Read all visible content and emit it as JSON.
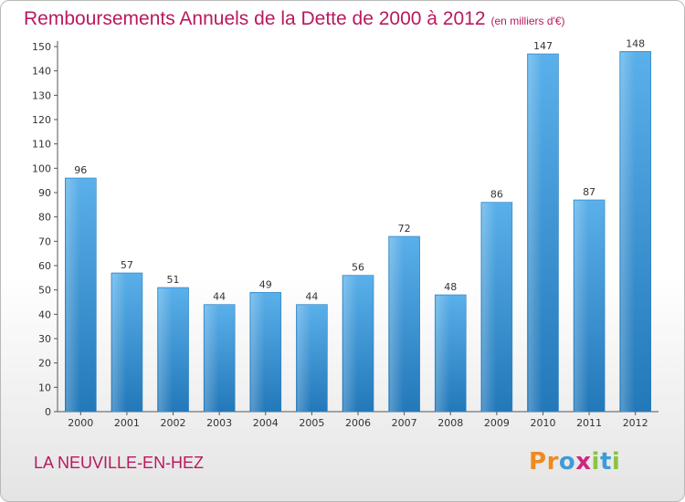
{
  "header": {
    "title": "Remboursements Annuels de la Dette de 2000 à 2012",
    "unit": "(en milliers d'€)"
  },
  "footer": {
    "commune": "LA NEUVILLE-EN-HEZ",
    "logo": [
      "P",
      "r",
      "o",
      "x",
      "i",
      "t",
      "i"
    ]
  },
  "colors": {
    "title": "#b8195f",
    "bar_light": "#5ab0ea",
    "bar_dark": "#2378b9",
    "logo": [
      "#ef8a1e",
      "#ef8a1e",
      "#3f9bd8",
      "#d0257e",
      "#8cc43f",
      "#3f9bd8",
      "#8cc43f"
    ]
  },
  "chart_data": {
    "type": "bar",
    "categories": [
      "2000",
      "2001",
      "2002",
      "2003",
      "2004",
      "2005",
      "2006",
      "2007",
      "2008",
      "2009",
      "2010",
      "2011",
      "2012"
    ],
    "values": [
      96,
      57,
      51,
      44,
      49,
      44,
      56,
      72,
      48,
      86,
      147,
      87,
      148
    ],
    "title": "Remboursements Annuels de la Dette de 2000 à 2012",
    "xlabel": "",
    "ylabel": "",
    "ylim": [
      0,
      150
    ],
    "yticks": [
      0,
      10,
      20,
      30,
      40,
      50,
      60,
      70,
      80,
      90,
      100,
      110,
      120,
      130,
      140,
      150
    ],
    "grid": false,
    "data_labels": true
  }
}
